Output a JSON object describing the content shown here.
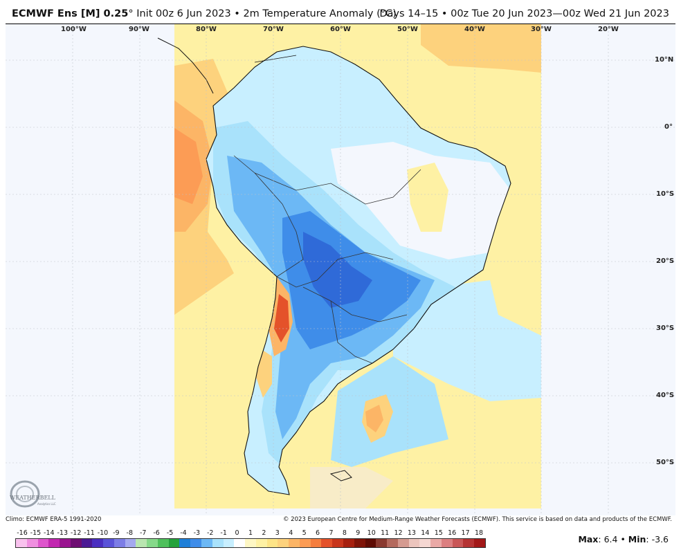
{
  "header": {
    "model": "ECMWF Ens [M] 0.25",
    "init": "Init 00z 6 Jun 2023",
    "bullet": "•",
    "variable": "2m Temperature Anomaly (°C)",
    "valid": "Days 14–15 • 00z Tue 20 Jun 2023—00z Wed 21 Jun 2023"
  },
  "map": {
    "lon_labels": [
      "100°W",
      "90°W",
      "80°W",
      "70°W",
      "60°W",
      "50°W",
      "40°W",
      "30°W",
      "20°W"
    ],
    "lat_labels": [
      "10°N",
      "0°",
      "10°S",
      "20°S",
      "30°S",
      "40°S",
      "50°S"
    ],
    "colors": {
      "background": "#f4f7fd",
      "warm_light": "#fef1a4",
      "warm_mid": "#fdd27d",
      "warm_orange": "#fc9c55",
      "warm_red": "#e4522a",
      "cool_pale": "#c8efff",
      "cool_light": "#a9e2fb",
      "cool_mid": "#6cb8f5",
      "cool_blue": "#3f8de9",
      "cool_deep": "#2f6ad8"
    }
  },
  "logo": {
    "text": "WEATHERBELL",
    "sub": "Analytics LLC"
  },
  "footer": {
    "climo": "Climo: ECMWF ERA-5 1991-2020",
    "copyright": "© 2023 European Centre for Medium-Range Weather Forecasts (ECMWF). This service is based on data and products of the ECMWF."
  },
  "colorbar": {
    "labels": [
      "-16",
      "-15",
      "-14",
      "-13",
      "-12",
      "-11",
      "-10",
      "-9",
      "-8",
      "-7",
      "-6",
      "-5",
      "-4",
      "-3",
      "-2",
      "-1",
      "0",
      "1",
      "2",
      "3",
      "4",
      "5",
      "6",
      "7",
      "8",
      "9",
      "10",
      "11",
      "12",
      "13",
      "14",
      "15",
      "16",
      "17",
      "18"
    ],
    "colors": [
      "#f9c2ee",
      "#f08fe0",
      "#de55cc",
      "#c227b0",
      "#9a1590",
      "#6e0e72",
      "#4b1a94",
      "#4a2fc0",
      "#5a53d8",
      "#7c7de6",
      "#a4a9ef",
      "#b9e6b0",
      "#86d98a",
      "#4fc05c",
      "#25a23c",
      "#1e7fd8",
      "#3f8de9",
      "#6cb8f5",
      "#a9e2fb",
      "#c8efff",
      "#ffffff",
      "#fef7c4",
      "#fef1a4",
      "#fde487",
      "#fdd27d",
      "#fcb566",
      "#fc9c55",
      "#f57e3e",
      "#e4522a",
      "#c8361c",
      "#a6200f",
      "#7e1408",
      "#5e0c04",
      "#8a3a30",
      "#b46a5e",
      "#d59b91",
      "#ecc5bd",
      "#f5d7d2",
      "#eaa9a6",
      "#dc7f80",
      "#c95757",
      "#b53333",
      "#a21818"
    ]
  },
  "stats": {
    "max_label": "Max",
    "max_value": "6.4",
    "sep": "•",
    "min_label": "Min",
    "min_value": "-3.6"
  }
}
